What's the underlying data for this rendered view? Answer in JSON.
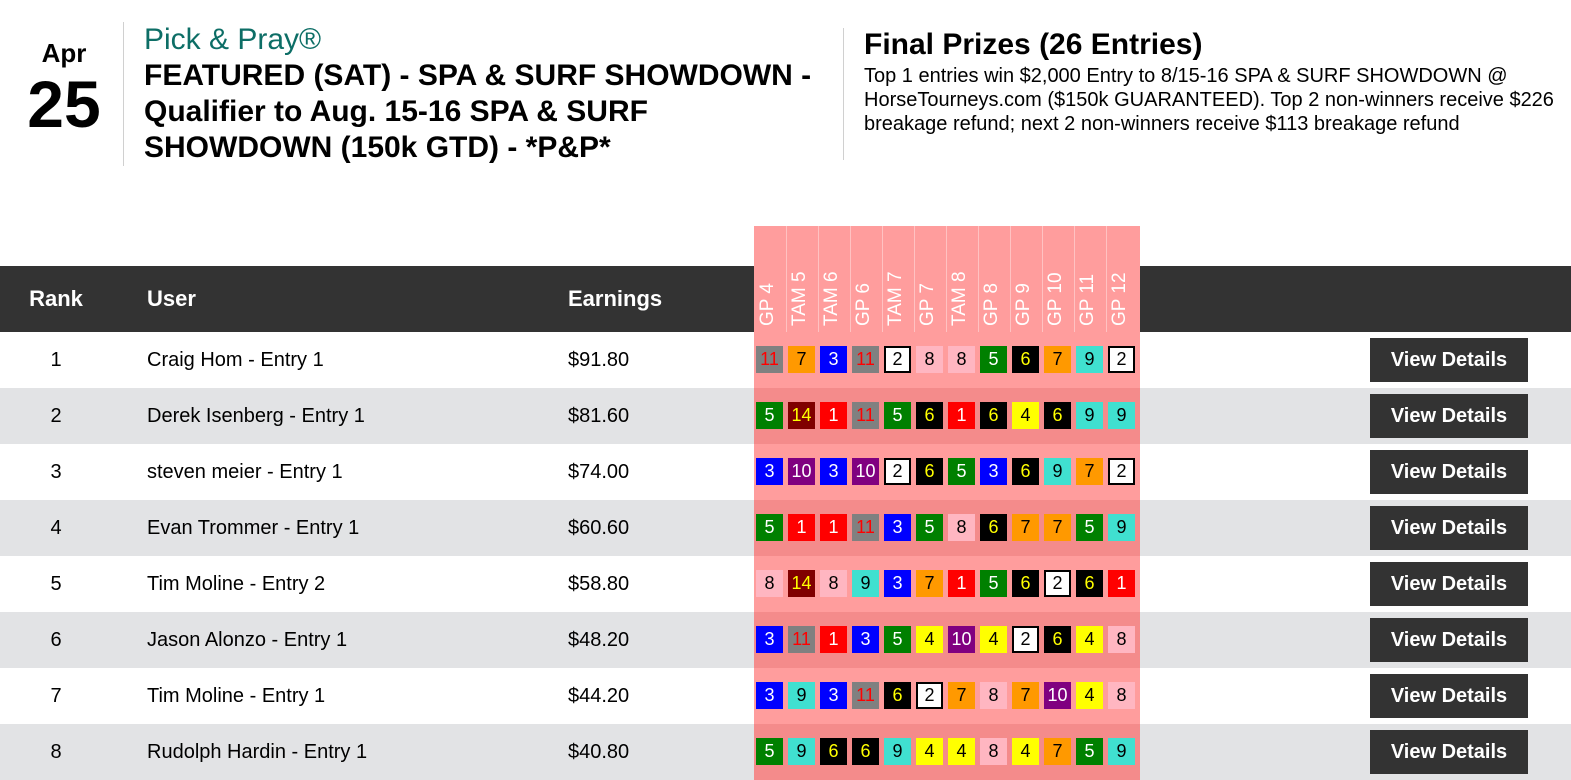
{
  "header": {
    "month": "Apr",
    "day": "25",
    "brand": "Pick & Pray®",
    "event_title": "FEATURED (SAT) - SPA & SURF SHOWDOWN - Qualifier to Aug. 15-16 SPA & SURF SHOWDOWN (150k GTD) - *P&P*",
    "prizes_title": "Final Prizes (26 Entries)",
    "prizes_text": "Top 1 entries win $2,000 Entry to 8/15-16 SPA & SURF SHOWDOWN @ HorseTourneys.com ($150k GUARANTEED). Top 2 non-winners receive $226 breakage refund; next 2 non-winners receive $113 breakage refund"
  },
  "table": {
    "headers": {
      "rank": "Rank",
      "user": "User",
      "earnings": "Earnings"
    },
    "races": [
      "GP 4",
      "TAM 5",
      "TAM 6",
      "GP 6",
      "TAM 7",
      "GP 7",
      "TAM 8",
      "GP 8",
      "GP 9",
      "GP 10",
      "GP 11",
      "GP 12"
    ],
    "view_label": "View Details",
    "rows": [
      {
        "rank": "1",
        "user": "Craig Hom - Entry 1",
        "earnings": "$91.80",
        "picks": [
          "11",
          "7",
          "3",
          "11",
          "2",
          "8",
          "8",
          "5",
          "6",
          "7",
          "9",
          "2"
        ]
      },
      {
        "rank": "2",
        "user": "Derek Isenberg - Entry 1",
        "earnings": "$81.60",
        "picks": [
          "5",
          "14",
          "1",
          "11",
          "5",
          "6",
          "1",
          "6",
          "4",
          "6",
          "9",
          "9"
        ]
      },
      {
        "rank": "3",
        "user": "steven meier - Entry 1",
        "earnings": "$74.00",
        "picks": [
          "3",
          "10",
          "3",
          "10",
          "2",
          "6",
          "5",
          "3",
          "6",
          "9",
          "7",
          "2"
        ]
      },
      {
        "rank": "4",
        "user": "Evan Trommer - Entry 1",
        "earnings": "$60.60",
        "picks": [
          "5",
          "1",
          "1",
          "11",
          "3",
          "5",
          "8",
          "6",
          "7",
          "7",
          "5",
          "9"
        ]
      },
      {
        "rank": "5",
        "user": "Tim Moline - Entry 2",
        "earnings": "$58.80",
        "picks": [
          "8",
          "14",
          "8",
          "9",
          "3",
          "7",
          "1",
          "5",
          "6",
          "2",
          "6",
          "1"
        ]
      },
      {
        "rank": "6",
        "user": "Jason Alonzo - Entry 1",
        "earnings": "$48.20",
        "picks": [
          "3",
          "11",
          "1",
          "3",
          "5",
          "4",
          "10",
          "4",
          "2",
          "6",
          "4",
          "8"
        ]
      },
      {
        "rank": "7",
        "user": "Tim Moline - Entry 1",
        "earnings": "$44.20",
        "picks": [
          "3",
          "9",
          "3",
          "11",
          "6",
          "2",
          "7",
          "8",
          "7",
          "10",
          "4",
          "8"
        ]
      },
      {
        "rank": "8",
        "user": "Rudolph Hardin - Entry 1",
        "earnings": "$40.80",
        "picks": [
          "5",
          "9",
          "6",
          "6",
          "9",
          "4",
          "4",
          "8",
          "4",
          "7",
          "5",
          "9"
        ]
      }
    ]
  },
  "saddle_cloth_colors": {
    "1": {
      "bg": "#ff0000",
      "fg": "#ffffff"
    },
    "2": {
      "bg": "#ffffff",
      "fg": "#000000",
      "border": "#000000"
    },
    "3": {
      "bg": "#0000ff",
      "fg": "#ffffff"
    },
    "4": {
      "bg": "#ffff00",
      "fg": "#000000"
    },
    "5": {
      "bg": "#008000",
      "fg": "#ffffff"
    },
    "6": {
      "bg": "#000000",
      "fg": "#ffff00"
    },
    "7": {
      "bg": "#ff9900",
      "fg": "#000000"
    },
    "8": {
      "bg": "#ffb6c1",
      "fg": "#000000"
    },
    "9": {
      "bg": "#40e0d0",
      "fg": "#000000"
    },
    "10": {
      "bg": "#800080",
      "fg": "#ffffff"
    },
    "11": {
      "bg": "#808080",
      "fg": "#ff0000"
    },
    "14": {
      "bg": "#800000",
      "fg": "#ffff00"
    }
  }
}
